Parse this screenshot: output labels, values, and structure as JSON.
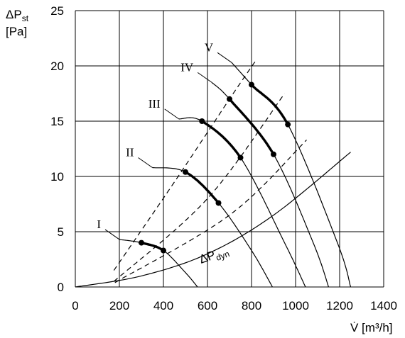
{
  "chart_data": {
    "type": "line",
    "xlim": [
      0,
      1400
    ],
    "ylim": [
      0,
      25
    ],
    "x_ticks": [
      0,
      200,
      400,
      600,
      800,
      1000,
      1200,
      1400
    ],
    "y_ticks": [
      0,
      5,
      10,
      15,
      20,
      25
    ],
    "grid": true,
    "ylabel": {
      "delta": "ΔP",
      "sub": "st",
      "unit": "[Pa]"
    },
    "xlabel": "V̇ [m³/h]",
    "fan_curves": [
      {
        "name": "I",
        "points": [
          [
            200,
            4.3
          ],
          [
            300,
            4.0
          ],
          [
            400,
            3.3
          ],
          [
            500,
            1.3
          ],
          [
            555,
            0
          ]
        ],
        "bold_from": 300,
        "bold_to": 400,
        "markers": [
          [
            300,
            4.0
          ],
          [
            400,
            3.3
          ]
        ]
      },
      {
        "name": "II",
        "points": [
          [
            350,
            10.8
          ],
          [
            500,
            10.4
          ],
          [
            650,
            7.6
          ],
          [
            800,
            3.3
          ],
          [
            895,
            0
          ]
        ],
        "bold_from": 500,
        "bold_to": 650,
        "markers": [
          [
            500,
            10.4
          ],
          [
            650,
            7.6
          ]
        ]
      },
      {
        "name": "III",
        "points": [
          [
            470,
            15.2
          ],
          [
            575,
            15.0
          ],
          [
            750,
            11.7
          ],
          [
            950,
            4.0
          ],
          [
            1045,
            0
          ]
        ],
        "bold_from": 575,
        "bold_to": 750,
        "markers": [
          [
            575,
            15.0
          ],
          [
            750,
            11.7
          ]
        ]
      },
      {
        "name": "IV",
        "points": [
          [
            620,
            18.5
          ],
          [
            700,
            17.0
          ],
          [
            900,
            12.0
          ],
          [
            1080,
            4.0
          ],
          [
            1150,
            0
          ]
        ],
        "bold_from": 700,
        "bold_to": 900,
        "markers": [
          [
            700,
            17.0
          ],
          [
            900,
            12.0
          ]
        ]
      },
      {
        "name": "V",
        "points": [
          [
            710,
            20.3
          ],
          [
            800,
            18.3
          ],
          [
            965,
            14.7
          ],
          [
            1190,
            4.0
          ],
          [
            1250,
            0
          ]
        ],
        "bold_from": 800,
        "bold_to": 965,
        "markers": [
          [
            800,
            18.3
          ],
          [
            965,
            14.7
          ]
        ]
      }
    ],
    "system_curves": [
      {
        "points": [
          [
            175,
            1.5
          ],
          [
            450,
            9.5
          ],
          [
            700,
            17.0
          ],
          [
            820,
            20.5
          ]
        ]
      },
      {
        "points": [
          [
            175,
            0.5
          ],
          [
            600,
            8.0
          ],
          [
            950,
            17.5
          ]
        ]
      },
      {
        "points": [
          [
            180,
            0.4
          ],
          [
            700,
            6.5
          ],
          [
            1050,
            13.3
          ]
        ]
      }
    ],
    "dynamic_curve": {
      "label": {
        "delta": "ΔP",
        "sub": "dyn"
      },
      "points": [
        [
          0,
          0
        ],
        [
          300,
          1.0
        ],
        [
          600,
          3.0
        ],
        [
          900,
          6.5
        ],
        [
          1250,
          12.2
        ]
      ]
    }
  }
}
